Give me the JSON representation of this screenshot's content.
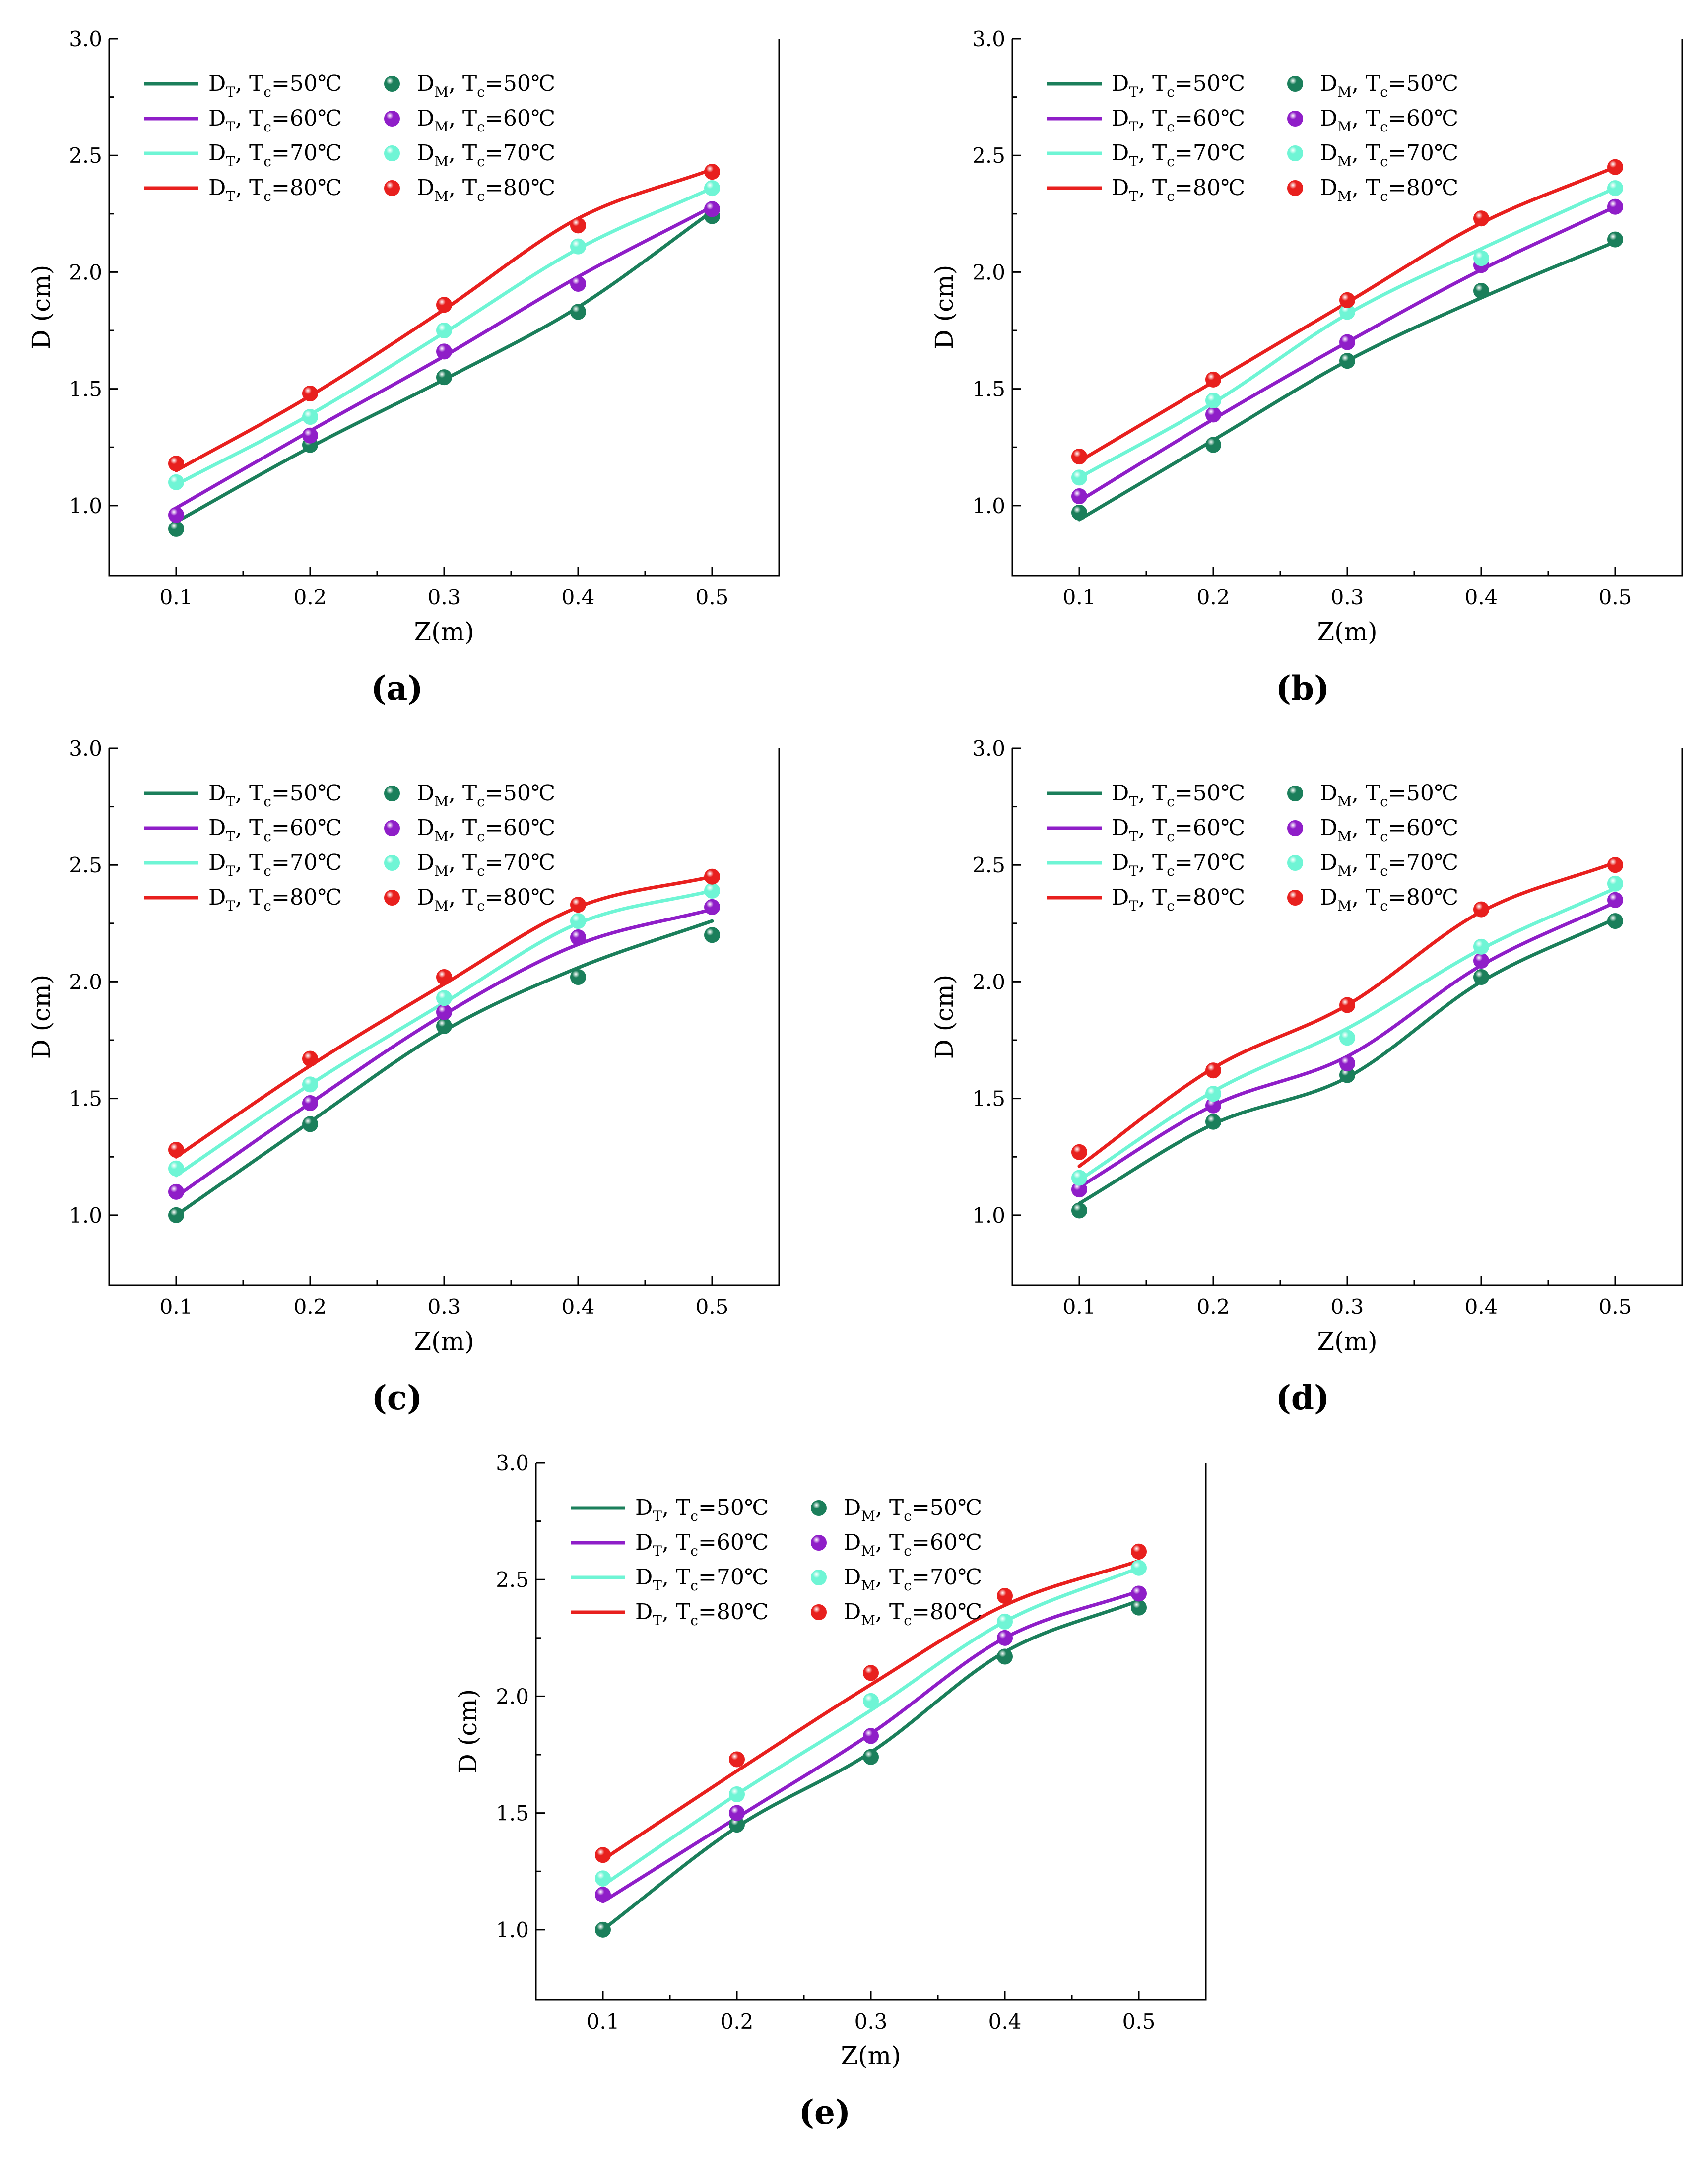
{
  "figure": {
    "panel_labels": [
      "(a)",
      "(b)",
      "(c)",
      "(d)",
      "(e)"
    ]
  },
  "legend": {
    "line_entries": [
      {
        "base": "D",
        "sub": "T",
        "mid": ", T",
        "sub2": "c",
        "tail": "=50℃",
        "color": "#1b7f5b"
      },
      {
        "base": "D",
        "sub": "T",
        "mid": ", T",
        "sub2": "c",
        "tail": "=60℃",
        "color": "#8f1ec8"
      },
      {
        "base": "D",
        "sub": "T",
        "mid": ", T",
        "sub2": "c",
        "tail": "=70℃",
        "color": "#6ff5d5"
      },
      {
        "base": "D",
        "sub": "T",
        "mid": ", T",
        "sub2": "c",
        "tail": "=80℃",
        "color": "#e8201e"
      }
    ],
    "marker_entries": [
      {
        "base": "D",
        "sub": "M",
        "mid": ", T",
        "sub2": "c",
        "tail": "=50℃",
        "color": "#1b7f5b"
      },
      {
        "base": "D",
        "sub": "M",
        "mid": ", T",
        "sub2": "c",
        "tail": "=60℃",
        "color": "#8f1ec8"
      },
      {
        "base": "D",
        "sub": "M",
        "mid": ", T",
        "sub2": "c",
        "tail": "=70℃",
        "color": "#6ff5d5"
      },
      {
        "base": "D",
        "sub": "M",
        "mid": ", T",
        "sub2": "c",
        "tail": "=80℃",
        "color": "#e8201e"
      }
    ]
  },
  "chart_data": [
    {
      "label": "(a)",
      "type": "line+scatter",
      "xlabel": "Z(m)",
      "ylabel": "D (cm)",
      "x": [
        0.1,
        0.2,
        0.3,
        0.4,
        0.5
      ],
      "xticks": [
        "0.1",
        "0.2",
        "0.3",
        "0.4",
        "0.5"
      ],
      "yticks": [
        "1.0",
        "1.5",
        "2.0",
        "2.5",
        "3.0"
      ],
      "xlim": [
        0.05,
        0.55
      ],
      "ylim": [
        0.7,
        3.0
      ],
      "legend_position": "top-left",
      "series": [
        {
          "name": "Tc=50℃",
          "color": "#1b7f5b",
          "D_T": [
            0.93,
            1.25,
            1.54,
            1.85,
            2.26
          ],
          "D_M": [
            0.9,
            1.26,
            1.55,
            1.83,
            2.24
          ]
        },
        {
          "name": "Tc=60℃",
          "color": "#8f1ec8",
          "D_T": [
            0.99,
            1.32,
            1.64,
            1.98,
            2.28
          ],
          "D_M": [
            0.96,
            1.3,
            1.66,
            1.95,
            2.27
          ]
        },
        {
          "name": "Tc=70℃",
          "color": "#6ff5d5",
          "D_T": [
            1.09,
            1.39,
            1.74,
            2.1,
            2.36
          ],
          "D_M": [
            1.1,
            1.38,
            1.75,
            2.11,
            2.36
          ]
        },
        {
          "name": "Tc=80℃",
          "color": "#e8201e",
          "D_T": [
            1.15,
            1.47,
            1.84,
            2.23,
            2.44
          ],
          "D_M": [
            1.18,
            1.48,
            1.86,
            2.2,
            2.43
          ]
        }
      ]
    },
    {
      "label": "(b)",
      "type": "line+scatter",
      "xlabel": "Z(m)",
      "ylabel": "D (cm)",
      "x": [
        0.1,
        0.2,
        0.3,
        0.4,
        0.5
      ],
      "xticks": [
        "0.1",
        "0.2",
        "0.3",
        "0.4",
        "0.5"
      ],
      "yticks": [
        "1.0",
        "1.5",
        "2.0",
        "2.5",
        "3.0"
      ],
      "xlim": [
        0.05,
        0.55
      ],
      "ylim": [
        0.7,
        3.0
      ],
      "legend_position": "top-left",
      "series": [
        {
          "name": "Tc=50℃",
          "color": "#1b7f5b",
          "D_T": [
            0.94,
            1.28,
            1.62,
            1.89,
            2.13
          ],
          "D_M": [
            0.97,
            1.26,
            1.62,
            1.92,
            2.14
          ]
        },
        {
          "name": "Tc=60℃",
          "color": "#8f1ec8",
          "D_T": [
            1.02,
            1.37,
            1.7,
            2.01,
            2.28
          ],
          "D_M": [
            1.04,
            1.39,
            1.7,
            2.03,
            2.28
          ]
        },
        {
          "name": "Tc=70℃",
          "color": "#6ff5d5",
          "D_T": [
            1.12,
            1.44,
            1.82,
            2.1,
            2.36
          ],
          "D_M": [
            1.12,
            1.45,
            1.83,
            2.06,
            2.36
          ]
        },
        {
          "name": "Tc=80℃",
          "color": "#e8201e",
          "D_T": [
            1.19,
            1.53,
            1.87,
            2.21,
            2.45
          ],
          "D_M": [
            1.21,
            1.54,
            1.88,
            2.23,
            2.45
          ]
        }
      ]
    },
    {
      "label": "(c)",
      "type": "line+scatter",
      "xlabel": "Z(m)",
      "ylabel": "D (cm)",
      "x": [
        0.1,
        0.2,
        0.3,
        0.4,
        0.5
      ],
      "xticks": [
        "0.1",
        "0.2",
        "0.3",
        "0.4",
        "0.5"
      ],
      "yticks": [
        "1.0",
        "1.5",
        "2.0",
        "2.5",
        "3.0"
      ],
      "xlim": [
        0.05,
        0.55
      ],
      "ylim": [
        0.7,
        3.0
      ],
      "legend_position": "top-left",
      "series": [
        {
          "name": "Tc=50℃",
          "color": "#1b7f5b",
          "D_T": [
            1.0,
            1.4,
            1.79,
            2.06,
            2.26
          ],
          "D_M": [
            1.0,
            1.39,
            1.81,
            2.02,
            2.2
          ]
        },
        {
          "name": "Tc=60℃",
          "color": "#8f1ec8",
          "D_T": [
            1.08,
            1.48,
            1.86,
            2.16,
            2.31
          ],
          "D_M": [
            1.1,
            1.48,
            1.87,
            2.19,
            2.32
          ]
        },
        {
          "name": "Tc=70℃",
          "color": "#6ff5d5",
          "D_T": [
            1.17,
            1.56,
            1.91,
            2.25,
            2.39
          ],
          "D_M": [
            1.2,
            1.56,
            1.93,
            2.26,
            2.39
          ]
        },
        {
          "name": "Tc=80℃",
          "color": "#e8201e",
          "D_T": [
            1.25,
            1.64,
            1.99,
            2.32,
            2.45
          ],
          "D_M": [
            1.28,
            1.67,
            2.02,
            2.33,
            2.45
          ]
        }
      ]
    },
    {
      "label": "(d)",
      "type": "line+scatter",
      "xlabel": "Z(m)",
      "ylabel": "D (cm)",
      "x": [
        0.1,
        0.2,
        0.3,
        0.4,
        0.5
      ],
      "xticks": [
        "0.1",
        "0.2",
        "0.3",
        "0.4",
        "0.5"
      ],
      "yticks": [
        "1.0",
        "1.5",
        "2.0",
        "2.5",
        "3.0"
      ],
      "xlim": [
        0.05,
        0.55
      ],
      "ylim": [
        0.7,
        3.0
      ],
      "legend_position": "top-left",
      "series": [
        {
          "name": "Tc=50℃",
          "color": "#1b7f5b",
          "D_T": [
            1.05,
            1.39,
            1.59,
            2.0,
            2.27
          ],
          "D_M": [
            1.02,
            1.4,
            1.6,
            2.02,
            2.26
          ]
        },
        {
          "name": "Tc=60℃",
          "color": "#8f1ec8",
          "D_T": [
            1.12,
            1.47,
            1.68,
            2.07,
            2.34
          ],
          "D_M": [
            1.11,
            1.47,
            1.65,
            2.09,
            2.35
          ]
        },
        {
          "name": "Tc=70℃",
          "color": "#6ff5d5",
          "D_T": [
            1.15,
            1.53,
            1.8,
            2.14,
            2.4
          ],
          "D_M": [
            1.16,
            1.52,
            1.76,
            2.15,
            2.42
          ]
        },
        {
          "name": "Tc=80℃",
          "color": "#e8201e",
          "D_T": [
            1.21,
            1.63,
            1.9,
            2.3,
            2.51
          ],
          "D_M": [
            1.27,
            1.62,
            1.9,
            2.31,
            2.5
          ]
        }
      ]
    },
    {
      "label": "(e)",
      "type": "line+scatter",
      "xlabel": "Z(m)",
      "ylabel": "D (cm)",
      "x": [
        0.1,
        0.2,
        0.3,
        0.4,
        0.5
      ],
      "xticks": [
        "0.1",
        "0.2",
        "0.3",
        "0.4",
        "0.5"
      ],
      "yticks": [
        "1.0",
        "1.5",
        "2.0",
        "2.5",
        "3.0"
      ],
      "xlim": [
        0.05,
        0.55
      ],
      "ylim": [
        0.7,
        3.0
      ],
      "legend_position": "top-left",
      "series": [
        {
          "name": "Tc=50℃",
          "color": "#1b7f5b",
          "D_T": [
            1.0,
            1.44,
            1.76,
            2.19,
            2.41
          ],
          "D_M": [
            1.0,
            1.45,
            1.74,
            2.17,
            2.38
          ]
        },
        {
          "name": "Tc=60℃",
          "color": "#8f1ec8",
          "D_T": [
            1.12,
            1.48,
            1.84,
            2.25,
            2.45
          ],
          "D_M": [
            1.15,
            1.5,
            1.83,
            2.25,
            2.44
          ]
        },
        {
          "name": "Tc=70℃",
          "color": "#6ff5d5",
          "D_T": [
            1.19,
            1.58,
            1.94,
            2.32,
            2.55
          ],
          "D_M": [
            1.22,
            1.58,
            1.98,
            2.32,
            2.55
          ]
        },
        {
          "name": "Tc=80℃",
          "color": "#e8201e",
          "D_T": [
            1.3,
            1.68,
            2.05,
            2.39,
            2.58
          ],
          "D_M": [
            1.32,
            1.73,
            2.1,
            2.43,
            2.62
          ]
        }
      ]
    }
  ]
}
